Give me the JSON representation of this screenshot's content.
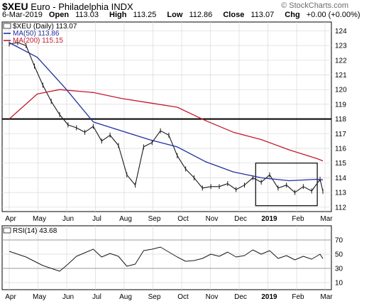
{
  "header": {
    "symbol": "$XEU",
    "name": "Euro - Philadelphia INDX",
    "watermark": "© StockCharts.com",
    "date": "6-Mar-2019",
    "open_label": "Open",
    "open": "113.03",
    "high_label": "High",
    "high": "113.25",
    "low_label": "Low",
    "low": "112.86",
    "close_label": "Close",
    "close": "113.07",
    "chg_label": "Chg",
    "chg": "+0.00 (+0.00%)"
  },
  "legend": {
    "price": "$XEU (Daily) 113.07",
    "ma50": "MA(50) 113.86",
    "ma200": "MA(200) 115.15",
    "rsi": "RSI(14) 43.68"
  },
  "colors": {
    "price": "#1a1a1a",
    "ma50": "#1f2f9e",
    "ma200": "#c21a2e",
    "grid": "#d9d9d9",
    "rsi_band": "#999999"
  },
  "chart_data": [
    {
      "type": "line",
      "title": "$XEU (Daily) 113.07",
      "x_months": [
        "Apr",
        "May",
        "Jun",
        "Jul",
        "Aug",
        "Sep",
        "Oct",
        "Nov",
        "Dec",
        "2019",
        "Feb",
        "Mar"
      ],
      "y_ticks": [
        112,
        113,
        114,
        115,
        116,
        117,
        118,
        119,
        120,
        121,
        122,
        123,
        124
      ],
      "ylim": [
        111.7,
        124.6
      ],
      "grid": true,
      "series": [
        {
          "name": "$XEU (Daily) 113.07",
          "x": [
            0.0,
            0.3,
            0.6,
            0.9,
            1.2,
            1.5,
            1.8,
            2.1,
            2.4,
            2.7,
            3.0,
            3.3,
            3.6,
            3.9,
            4.2,
            4.5,
            4.8,
            5.1,
            5.4,
            5.7,
            6.0,
            6.3,
            6.6,
            6.9,
            7.2,
            7.5,
            7.8,
            8.1,
            8.4,
            8.7,
            9.0,
            9.3,
            9.6,
            9.9,
            10.2,
            10.5,
            10.8,
            11.1,
            11.2
          ],
          "values": [
            123.1,
            123.2,
            123.0,
            121.6,
            120.3,
            119.2,
            118.3,
            117.6,
            117.4,
            117.1,
            117.5,
            116.5,
            116.9,
            116.2,
            114.2,
            113.5,
            116.1,
            116.4,
            117.2,
            116.9,
            115.5,
            114.6,
            114.0,
            113.3,
            113.4,
            113.4,
            113.6,
            113.2,
            113.5,
            114.0,
            113.7,
            114.2,
            113.3,
            113.5,
            113.0,
            113.4,
            113.1,
            113.9,
            113.07
          ]
        },
        {
          "name": "MA(50) 113.86",
          "x": [
            0.0,
            1.0,
            2.0,
            3.0,
            4.0,
            5.0,
            6.0,
            7.0,
            8.0,
            9.0,
            10.0,
            11.0,
            11.2
          ],
          "values": [
            123.2,
            122.2,
            120.1,
            117.8,
            117.2,
            116.6,
            116.1,
            115.1,
            114.4,
            114.0,
            113.8,
            113.9,
            113.86
          ]
        },
        {
          "name": "MA(200) 115.15",
          "x": [
            0.0,
            1.0,
            1.8,
            3.0,
            4.0,
            5.0,
            6.0,
            7.0,
            8.0,
            9.0,
            10.0,
            11.0,
            11.2
          ],
          "values": [
            118.0,
            119.7,
            120.0,
            119.8,
            119.4,
            119.1,
            118.8,
            117.9,
            117.1,
            116.6,
            115.9,
            115.3,
            115.15
          ]
        }
      ],
      "annotations": [
        {
          "kind": "horizontal-line",
          "y": 118.0
        },
        {
          "kind": "box",
          "x": [
            8.8,
            11.0
          ],
          "y": [
            112.1,
            115.0
          ]
        }
      ]
    },
    {
      "type": "line",
      "title": "RSI(14) 43.68",
      "x_months": [
        "Apr",
        "May",
        "Jun",
        "Jul",
        "Aug",
        "Sep",
        "Oct",
        "Nov",
        "Dec",
        "2019",
        "Feb",
        "Mar"
      ],
      "y_ticks": [
        10,
        30,
        50,
        70
      ],
      "ylim": [
        0,
        90
      ],
      "reference_lines": [
        30,
        70
      ],
      "grid": true,
      "series": [
        {
          "name": "RSI(14) 43.68",
          "x": [
            0.0,
            0.3,
            0.6,
            0.9,
            1.2,
            1.5,
            1.8,
            2.1,
            2.4,
            2.7,
            3.0,
            3.3,
            3.6,
            3.9,
            4.2,
            4.5,
            4.8,
            5.1,
            5.4,
            5.7,
            6.0,
            6.3,
            6.6,
            6.9,
            7.2,
            7.5,
            7.8,
            8.1,
            8.4,
            8.7,
            9.0,
            9.3,
            9.6,
            9.9,
            10.2,
            10.5,
            10.8,
            11.1,
            11.2
          ],
          "values": [
            54,
            50,
            46,
            40,
            34,
            30,
            26,
            36,
            47,
            52,
            57,
            46,
            51,
            47,
            33,
            36,
            55,
            57,
            60,
            53,
            46,
            40,
            41,
            44,
            50,
            47,
            53,
            46,
            48,
            56,
            50,
            55,
            44,
            48,
            42,
            47,
            43,
            50,
            43.68
          ]
        }
      ]
    }
  ]
}
